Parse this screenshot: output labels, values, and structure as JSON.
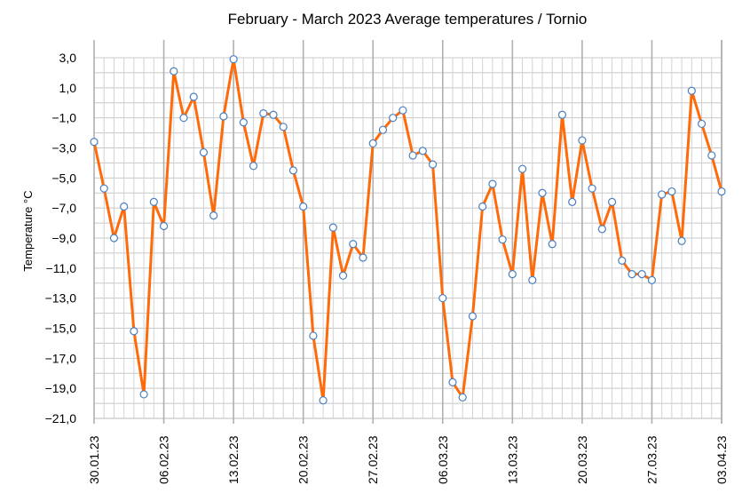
{
  "chart_data": {
    "type": "line",
    "title": "February - March 2023  Average temperatures  / Tornio",
    "xlabel": "",
    "ylabel": "Temperature  °C",
    "ylim": [
      -21,
      3
    ],
    "y_ticks": [
      "3,0",
      "1,0",
      "−1,0",
      "−3,0",
      "−5,0",
      "−7,0",
      "−9,0",
      "−11,0",
      "−13,0",
      "−15,0",
      "−17,0",
      "−19,0",
      "−21,0"
    ],
    "x_ticks": [
      "30.01.23",
      "06.02.23",
      "13.02.23",
      "20.02.23",
      "27.02.23",
      "06.03.23",
      "13.03.23",
      "20.03.23",
      "27.03.23",
      "03.04.23"
    ],
    "grid": true,
    "series": [
      {
        "color": "#ff6a0a",
        "marker_edge": "#4a7fc1",
        "values": [
          -2.6,
          -5.7,
          -9.0,
          -6.9,
          -15.2,
          -19.4,
          -6.6,
          -8.2,
          2.1,
          -1.0,
          0.4,
          -3.3,
          -7.5,
          -0.9,
          2.9,
          -1.3,
          -4.2,
          -0.7,
          -0.8,
          -1.6,
          -4.5,
          -6.9,
          -15.5,
          -19.8,
          -8.3,
          -11.5,
          -9.4,
          -10.3,
          -2.7,
          -1.8,
          -1.0,
          -0.5,
          -3.5,
          -3.2,
          -4.1,
          -13.0,
          -18.6,
          -19.6,
          -14.2,
          -6.9,
          -5.4,
          -9.1,
          -11.4,
          -4.4,
          -11.8,
          -6.0,
          -9.4,
          -0.8,
          -6.6,
          -2.5,
          -5.7,
          -8.4,
          -6.6,
          -10.5,
          -11.4,
          -11.4,
          -11.8,
          -6.1,
          -5.9,
          -9.2,
          0.8,
          -1.4,
          -3.5,
          -5.9
        ]
      }
    ]
  }
}
